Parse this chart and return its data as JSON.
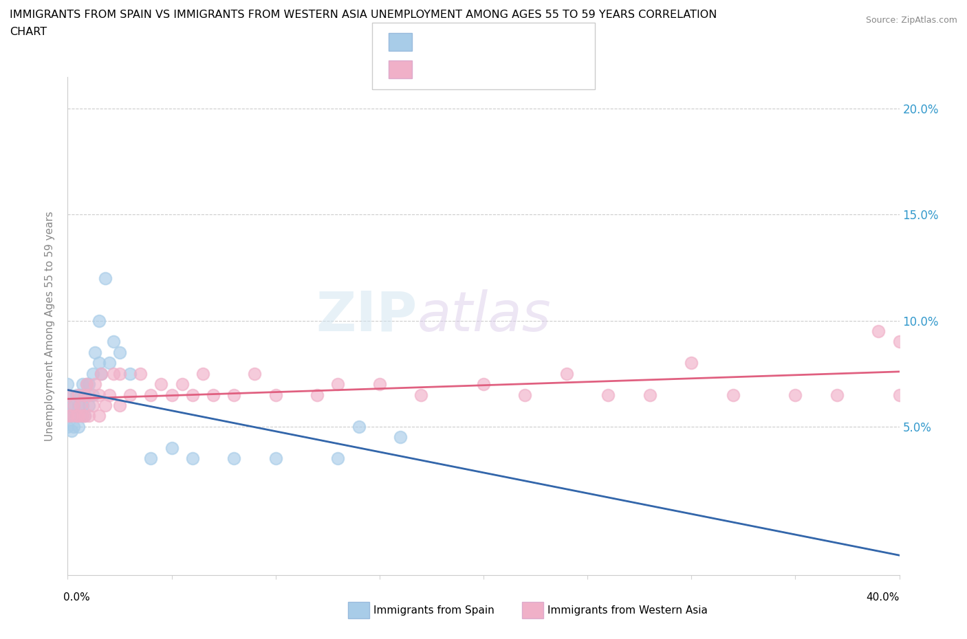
{
  "title_line1": "IMMIGRANTS FROM SPAIN VS IMMIGRANTS FROM WESTERN ASIA UNEMPLOYMENT AMONG AGES 55 TO 59 YEARS CORRELATION",
  "title_line2": "CHART",
  "source": "Source: ZipAtlas.com",
  "ylabel": "Unemployment Among Ages 55 to 59 years",
  "ylabel_tick_vals": [
    0.05,
    0.1,
    0.15,
    0.2
  ],
  "ylabel_tick_labels": [
    "5.0%",
    "10.0%",
    "15.0%",
    "20.0%"
  ],
  "xlim": [
    0.0,
    0.4
  ],
  "ylim": [
    -0.02,
    0.215
  ],
  "watermark": "ZIPatlas",
  "color_spain": "#a8cce8",
  "color_western_asia": "#f0b0c8",
  "color_line_spain": "#3366aa",
  "color_line_western_asia": "#e06080",
  "spain_x": [
    0.0,
    0.0,
    0.0,
    0.0,
    0.0,
    0.002,
    0.002,
    0.003,
    0.003,
    0.004,
    0.004,
    0.005,
    0.005,
    0.006,
    0.006,
    0.007,
    0.007,
    0.008,
    0.008,
    0.009,
    0.01,
    0.01,
    0.012,
    0.012,
    0.013,
    0.015,
    0.015,
    0.016,
    0.018,
    0.02,
    0.022,
    0.025,
    0.03,
    0.04,
    0.05,
    0.06,
    0.08,
    0.1,
    0.13,
    0.14,
    0.16
  ],
  "spain_y": [
    0.05,
    0.055,
    0.06,
    0.065,
    0.07,
    0.048,
    0.055,
    0.05,
    0.06,
    0.055,
    0.065,
    0.05,
    0.06,
    0.055,
    0.065,
    0.06,
    0.07,
    0.055,
    0.065,
    0.07,
    0.06,
    0.07,
    0.065,
    0.075,
    0.085,
    0.08,
    0.1,
    0.075,
    0.12,
    0.08,
    0.09,
    0.085,
    0.075,
    0.035,
    0.04,
    0.035,
    0.035,
    0.035,
    0.035,
    0.05,
    0.045
  ],
  "western_asia_x": [
    0.0,
    0.0,
    0.002,
    0.003,
    0.004,
    0.005,
    0.005,
    0.006,
    0.007,
    0.008,
    0.008,
    0.009,
    0.01,
    0.01,
    0.012,
    0.013,
    0.015,
    0.015,
    0.016,
    0.018,
    0.02,
    0.022,
    0.025,
    0.025,
    0.03,
    0.035,
    0.04,
    0.045,
    0.05,
    0.055,
    0.06,
    0.065,
    0.07,
    0.08,
    0.09,
    0.1,
    0.12,
    0.13,
    0.15,
    0.17,
    0.2,
    0.22,
    0.24,
    0.26,
    0.28,
    0.3,
    0.32,
    0.35,
    0.37,
    0.39,
    0.4,
    0.4
  ],
  "western_asia_y": [
    0.055,
    0.065,
    0.055,
    0.06,
    0.055,
    0.055,
    0.065,
    0.06,
    0.055,
    0.055,
    0.065,
    0.07,
    0.055,
    0.065,
    0.06,
    0.07,
    0.055,
    0.065,
    0.075,
    0.06,
    0.065,
    0.075,
    0.06,
    0.075,
    0.065,
    0.075,
    0.065,
    0.07,
    0.065,
    0.07,
    0.065,
    0.075,
    0.065,
    0.065,
    0.075,
    0.065,
    0.065,
    0.07,
    0.07,
    0.065,
    0.07,
    0.065,
    0.075,
    0.065,
    0.065,
    0.08,
    0.065,
    0.065,
    0.065,
    0.095,
    0.09,
    0.065
  ]
}
